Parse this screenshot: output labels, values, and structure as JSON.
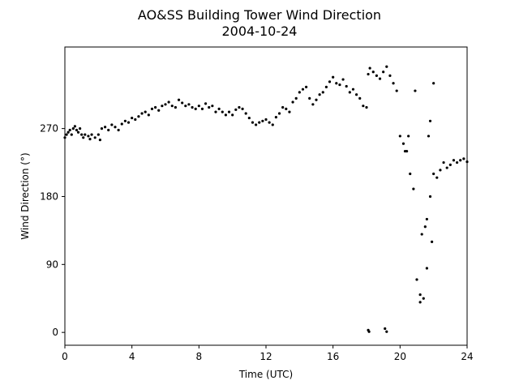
{
  "chart_data": {
    "type": "scatter",
    "title": "AO&SS Building Tower Wind Direction",
    "subtitle": "2004-10-24",
    "xlabel": "Time (UTC)",
    "ylabel": "Wind Direction (°)",
    "xlim": [
      0,
      24
    ],
    "ylim": [
      -17,
      378
    ],
    "xticks": [
      0,
      4,
      8,
      12,
      16,
      20,
      24
    ],
    "yticks": [
      0,
      90,
      180,
      270
    ],
    "grid": false,
    "marker_color": "#000000",
    "series": [
      {
        "points": [
          [
            0.0,
            258
          ],
          [
            0.1,
            262
          ],
          [
            0.2,
            265
          ],
          [
            0.3,
            268
          ],
          [
            0.4,
            262
          ],
          [
            0.5,
            270
          ],
          [
            0.6,
            273
          ],
          [
            0.7,
            268
          ],
          [
            0.8,
            265
          ],
          [
            0.9,
            270
          ],
          [
            1.0,
            262
          ],
          [
            1.1,
            258
          ],
          [
            1.2,
            262
          ],
          [
            1.4,
            260
          ],
          [
            1.5,
            256
          ],
          [
            1.6,
            262
          ],
          [
            1.8,
            258
          ],
          [
            2.0,
            262
          ],
          [
            2.1,
            255
          ],
          [
            2.2,
            270
          ],
          [
            2.4,
            272
          ],
          [
            2.6,
            268
          ],
          [
            2.8,
            275
          ],
          [
            3.0,
            272
          ],
          [
            3.2,
            268
          ],
          [
            3.4,
            276
          ],
          [
            3.6,
            280
          ],
          [
            3.8,
            278
          ],
          [
            4.0,
            284
          ],
          [
            4.2,
            282
          ],
          [
            4.4,
            286
          ],
          [
            4.6,
            290
          ],
          [
            4.8,
            292
          ],
          [
            5.0,
            288
          ],
          [
            5.2,
            296
          ],
          [
            5.4,
            298
          ],
          [
            5.6,
            294
          ],
          [
            5.8,
            300
          ],
          [
            6.0,
            302
          ],
          [
            6.2,
            305
          ],
          [
            6.4,
            300
          ],
          [
            6.6,
            298
          ],
          [
            6.8,
            308
          ],
          [
            7.0,
            304
          ],
          [
            7.2,
            300
          ],
          [
            7.4,
            302
          ],
          [
            7.6,
            298
          ],
          [
            7.8,
            296
          ],
          [
            8.0,
            300
          ],
          [
            8.2,
            296
          ],
          [
            8.4,
            303
          ],
          [
            8.6,
            298
          ],
          [
            8.8,
            300
          ],
          [
            9.0,
            292
          ],
          [
            9.2,
            296
          ],
          [
            9.4,
            292
          ],
          [
            9.6,
            288
          ],
          [
            9.8,
            292
          ],
          [
            10.0,
            288
          ],
          [
            10.2,
            295
          ],
          [
            10.4,
            298
          ],
          [
            10.6,
            296
          ],
          [
            10.8,
            290
          ],
          [
            11.0,
            284
          ],
          [
            11.2,
            278
          ],
          [
            11.4,
            275
          ],
          [
            11.6,
            278
          ],
          [
            11.8,
            280
          ],
          [
            12.0,
            282
          ],
          [
            12.2,
            278
          ],
          [
            12.4,
            275
          ],
          [
            12.6,
            285
          ],
          [
            12.8,
            290
          ],
          [
            13.0,
            298
          ],
          [
            13.2,
            296
          ],
          [
            13.4,
            292
          ],
          [
            13.6,
            305
          ],
          [
            13.8,
            310
          ],
          [
            14.0,
            318
          ],
          [
            14.2,
            322
          ],
          [
            14.4,
            325
          ],
          [
            14.6,
            310
          ],
          [
            14.8,
            302
          ],
          [
            15.0,
            308
          ],
          [
            15.2,
            315
          ],
          [
            15.4,
            318
          ],
          [
            15.6,
            325
          ],
          [
            15.8,
            332
          ],
          [
            16.0,
            338
          ],
          [
            16.2,
            330
          ],
          [
            16.4,
            328
          ],
          [
            16.6,
            335
          ],
          [
            16.8,
            326
          ],
          [
            17.0,
            318
          ],
          [
            17.2,
            322
          ],
          [
            17.4,
            315
          ],
          [
            17.6,
            310
          ],
          [
            17.8,
            300
          ],
          [
            18.0,
            298
          ],
          [
            18.1,
            342
          ],
          [
            18.2,
            350
          ],
          [
            18.4,
            345
          ],
          [
            18.6,
            340
          ],
          [
            18.8,
            336
          ],
          [
            19.0,
            345
          ],
          [
            19.2,
            352
          ],
          [
            19.4,
            340
          ],
          [
            19.6,
            330
          ],
          [
            19.8,
            320
          ],
          [
            20.0,
            260
          ],
          [
            20.2,
            250
          ],
          [
            20.4,
            240
          ],
          [
            20.6,
            210
          ],
          [
            20.8,
            190
          ],
          [
            21.0,
            70
          ],
          [
            21.2,
            50
          ],
          [
            21.4,
            45
          ],
          [
            21.6,
            85
          ],
          [
            21.8,
            180
          ],
          [
            22.0,
            210
          ],
          [
            22.2,
            205
          ],
          [
            22.4,
            215
          ],
          [
            22.6,
            225
          ],
          [
            22.8,
            218
          ],
          [
            23.0,
            222
          ],
          [
            23.2,
            228
          ],
          [
            23.4,
            225
          ],
          [
            23.6,
            228
          ],
          [
            23.8,
            230
          ],
          [
            24.0,
            226
          ],
          [
            18.1,
            3
          ],
          [
            18.15,
            1
          ],
          [
            19.1,
            5
          ],
          [
            19.2,
            1
          ],
          [
            21.2,
            40
          ],
          [
            21.3,
            130
          ],
          [
            21.5,
            140
          ],
          [
            21.6,
            150
          ],
          [
            21.7,
            260
          ],
          [
            21.8,
            280
          ],
          [
            22.0,
            330
          ],
          [
            21.9,
            120
          ],
          [
            20.9,
            320
          ],
          [
            20.5,
            260
          ],
          [
            20.3,
            240
          ]
        ]
      }
    ]
  }
}
